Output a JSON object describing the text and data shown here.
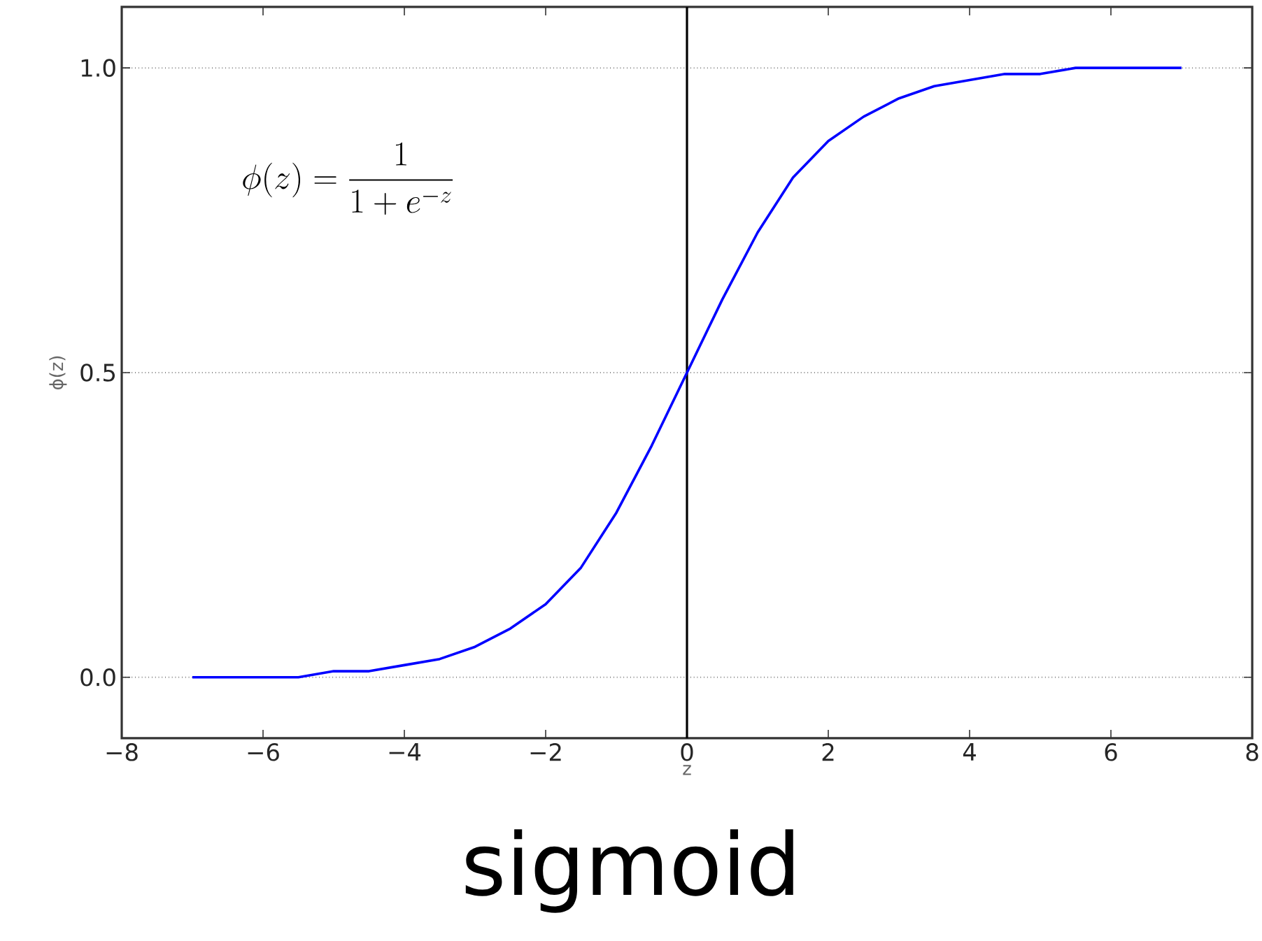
{
  "chart_data": {
    "type": "line",
    "xlabel": "z",
    "ylabel": "ϕ(z)",
    "annotations": [
      "\\phi(z) = \\frac{1}{1+e^{-z}}",
      "sigmoid"
    ],
    "x": [
      -7,
      -6.5,
      -6,
      -5.5,
      -5,
      -4.5,
      -4,
      -3.5,
      -3,
      -2.5,
      -2,
      -1.5,
      -1,
      -0.5,
      0,
      0.5,
      1,
      1.5,
      2,
      2.5,
      3,
      3.5,
      4,
      4.5,
      5,
      5.5,
      6,
      6.5,
      7
    ],
    "series": [
      {
        "color": "#0000ff",
        "values": [
          0.0,
          0.0,
          0.0,
          0.0,
          0.01,
          0.01,
          0.02,
          0.03,
          0.05,
          0.08,
          0.12,
          0.18,
          0.27,
          0.38,
          0.5,
          0.62,
          0.73,
          0.82,
          0.88,
          0.92,
          0.95,
          0.97,
          0.98,
          0.99,
          0.99,
          1.0,
          1.0,
          1.0,
          1.0
        ]
      }
    ],
    "xlim": [
      -8,
      8
    ],
    "ylim": [
      -0.1,
      1.1
    ],
    "xticks": [
      {
        "value": -8,
        "label": "−8"
      },
      {
        "value": -6,
        "label": "−6"
      },
      {
        "value": -4,
        "label": "−4"
      },
      {
        "value": -2,
        "label": "−2"
      },
      0,
      2,
      4,
      6,
      8
    ],
    "yticks": [
      {
        "value": 0,
        "label": "0.0"
      },
      {
        "value": 0.5,
        "label": "0.5"
      },
      {
        "value": 1,
        "label": "1.0"
      }
    ],
    "grid": "y",
    "marker": "none",
    "line_style": "solid",
    "ref_lines": [
      {
        "axis": "x",
        "value": 0,
        "color": "#000000"
      }
    ]
  }
}
